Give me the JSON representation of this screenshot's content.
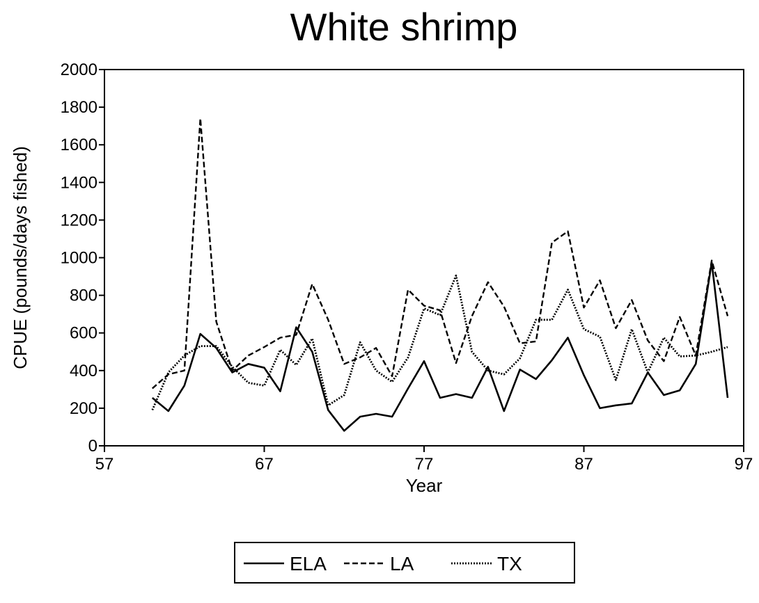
{
  "chart_data": {
    "type": "line",
    "title": "White shrimp",
    "xlabel": "Year",
    "ylabel": "CPUE (pounds/days fished)",
    "xlim": [
      57,
      97
    ],
    "ylim": [
      0,
      2000
    ],
    "xticks": [
      57,
      67,
      77,
      87,
      97
    ],
    "yticks": [
      0,
      200,
      400,
      600,
      800,
      1000,
      1200,
      1400,
      1600,
      1800,
      2000
    ],
    "grid": false,
    "legend_position": "bottom-center",
    "series": [
      {
        "name": "ELA",
        "style": "solid",
        "color": "#000000",
        "x": [
          60,
          61,
          62,
          63,
          64,
          65,
          66,
          67,
          68,
          69,
          70,
          71,
          72,
          73,
          74,
          75,
          76,
          77,
          78,
          79,
          80,
          81,
          82,
          83,
          84,
          85,
          86,
          87,
          88,
          89,
          90,
          91,
          92,
          93,
          94,
          95,
          96
        ],
        "y": [
          255,
          185,
          320,
          595,
          520,
          390,
          435,
          415,
          290,
          630,
          500,
          190,
          80,
          155,
          170,
          155,
          305,
          450,
          255,
          275,
          255,
          420,
          185,
          405,
          355,
          455,
          575,
          375,
          200,
          215,
          225,
          390,
          270,
          295,
          435,
          975,
          255
        ]
      },
      {
        "name": "LA",
        "style": "dashed",
        "color": "#000000",
        "x": [
          60,
          61,
          62,
          63,
          64,
          65,
          66,
          67,
          68,
          69,
          70,
          71,
          72,
          73,
          74,
          75,
          76,
          77,
          78,
          79,
          80,
          81,
          82,
          83,
          84,
          85,
          86,
          87,
          88,
          89,
          90,
          91,
          92,
          93,
          94,
          95,
          96
        ],
        "y": [
          305,
          380,
          400,
          1740,
          660,
          400,
          480,
          525,
          575,
          590,
          860,
          670,
          435,
          470,
          520,
          370,
          830,
          745,
          720,
          440,
          690,
          870,
          740,
          545,
          555,
          1080,
          1140,
          735,
          880,
          625,
          775,
          560,
          450,
          685,
          480,
          985,
          690
        ]
      },
      {
        "name": "TX",
        "style": "dotted",
        "color": "#000000",
        "x": [
          60,
          61,
          62,
          63,
          64,
          65,
          66,
          67,
          68,
          69,
          70,
          71,
          72,
          73,
          74,
          75,
          76,
          77,
          78,
          79,
          80,
          81,
          82,
          83,
          84,
          85,
          86,
          87,
          88,
          89,
          90,
          91,
          92,
          93,
          94,
          95,
          96
        ],
        "y": [
          190,
          390,
          480,
          530,
          530,
          420,
          335,
          320,
          510,
          430,
          570,
          215,
          270,
          550,
          400,
          340,
          470,
          730,
          695,
          905,
          500,
          400,
          380,
          465,
          670,
          670,
          830,
          620,
          580,
          350,
          620,
          390,
          575,
          475,
          480,
          500,
          525
        ]
      }
    ]
  }
}
